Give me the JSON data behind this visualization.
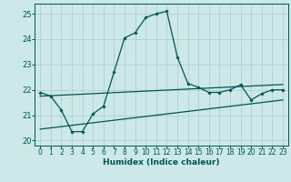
{
  "xlabel": "Humidex (Indice chaleur)",
  "bg_color": "#cce8e8",
  "grid_color": "#aacccc",
  "line_color": "#005555",
  "xlim": [
    -0.5,
    23.5
  ],
  "ylim": [
    19.8,
    25.4
  ],
  "yticks": [
    20,
    21,
    22,
    23,
    24,
    25
  ],
  "xticks": [
    0,
    1,
    2,
    3,
    4,
    5,
    6,
    7,
    8,
    9,
    10,
    11,
    12,
    13,
    14,
    15,
    16,
    17,
    18,
    19,
    20,
    21,
    22,
    23
  ],
  "line1_x": [
    0,
    1,
    2,
    3,
    4,
    5,
    6,
    7,
    8,
    9,
    10,
    11,
    12,
    13,
    14,
    15,
    16,
    17,
    18,
    19,
    20,
    21,
    22,
    23
  ],
  "line1_y": [
    21.9,
    21.75,
    21.2,
    20.35,
    20.35,
    21.05,
    21.35,
    22.7,
    24.05,
    24.25,
    24.85,
    25.0,
    25.1,
    23.3,
    22.25,
    22.1,
    21.9,
    21.9,
    22.0,
    22.2,
    21.6,
    21.85,
    22.0,
    22.0
  ],
  "line2_x": [
    0,
    1,
    2,
    3,
    4,
    5,
    6,
    7,
    8,
    9,
    10,
    11,
    12,
    13,
    14,
    15,
    16,
    17,
    18,
    19,
    20,
    21,
    22,
    23
  ],
  "line2_y": [
    21.75,
    21.77,
    21.79,
    21.81,
    21.83,
    21.85,
    21.87,
    21.89,
    21.91,
    21.93,
    21.95,
    21.97,
    21.99,
    22.01,
    22.03,
    22.05,
    22.07,
    22.09,
    22.11,
    22.13,
    22.15,
    22.17,
    22.19,
    22.21
  ],
  "line3_x": [
    0,
    1,
    2,
    3,
    4,
    5,
    6,
    7,
    8,
    9,
    10,
    11,
    12,
    13,
    14,
    15,
    16,
    17,
    18,
    19,
    20,
    21,
    22,
    23
  ],
  "line3_y": [
    20.45,
    20.5,
    20.55,
    20.6,
    20.65,
    20.7,
    20.75,
    20.8,
    20.85,
    20.9,
    20.95,
    21.0,
    21.05,
    21.1,
    21.15,
    21.2,
    21.25,
    21.3,
    21.35,
    21.4,
    21.45,
    21.5,
    21.55,
    21.6
  ]
}
